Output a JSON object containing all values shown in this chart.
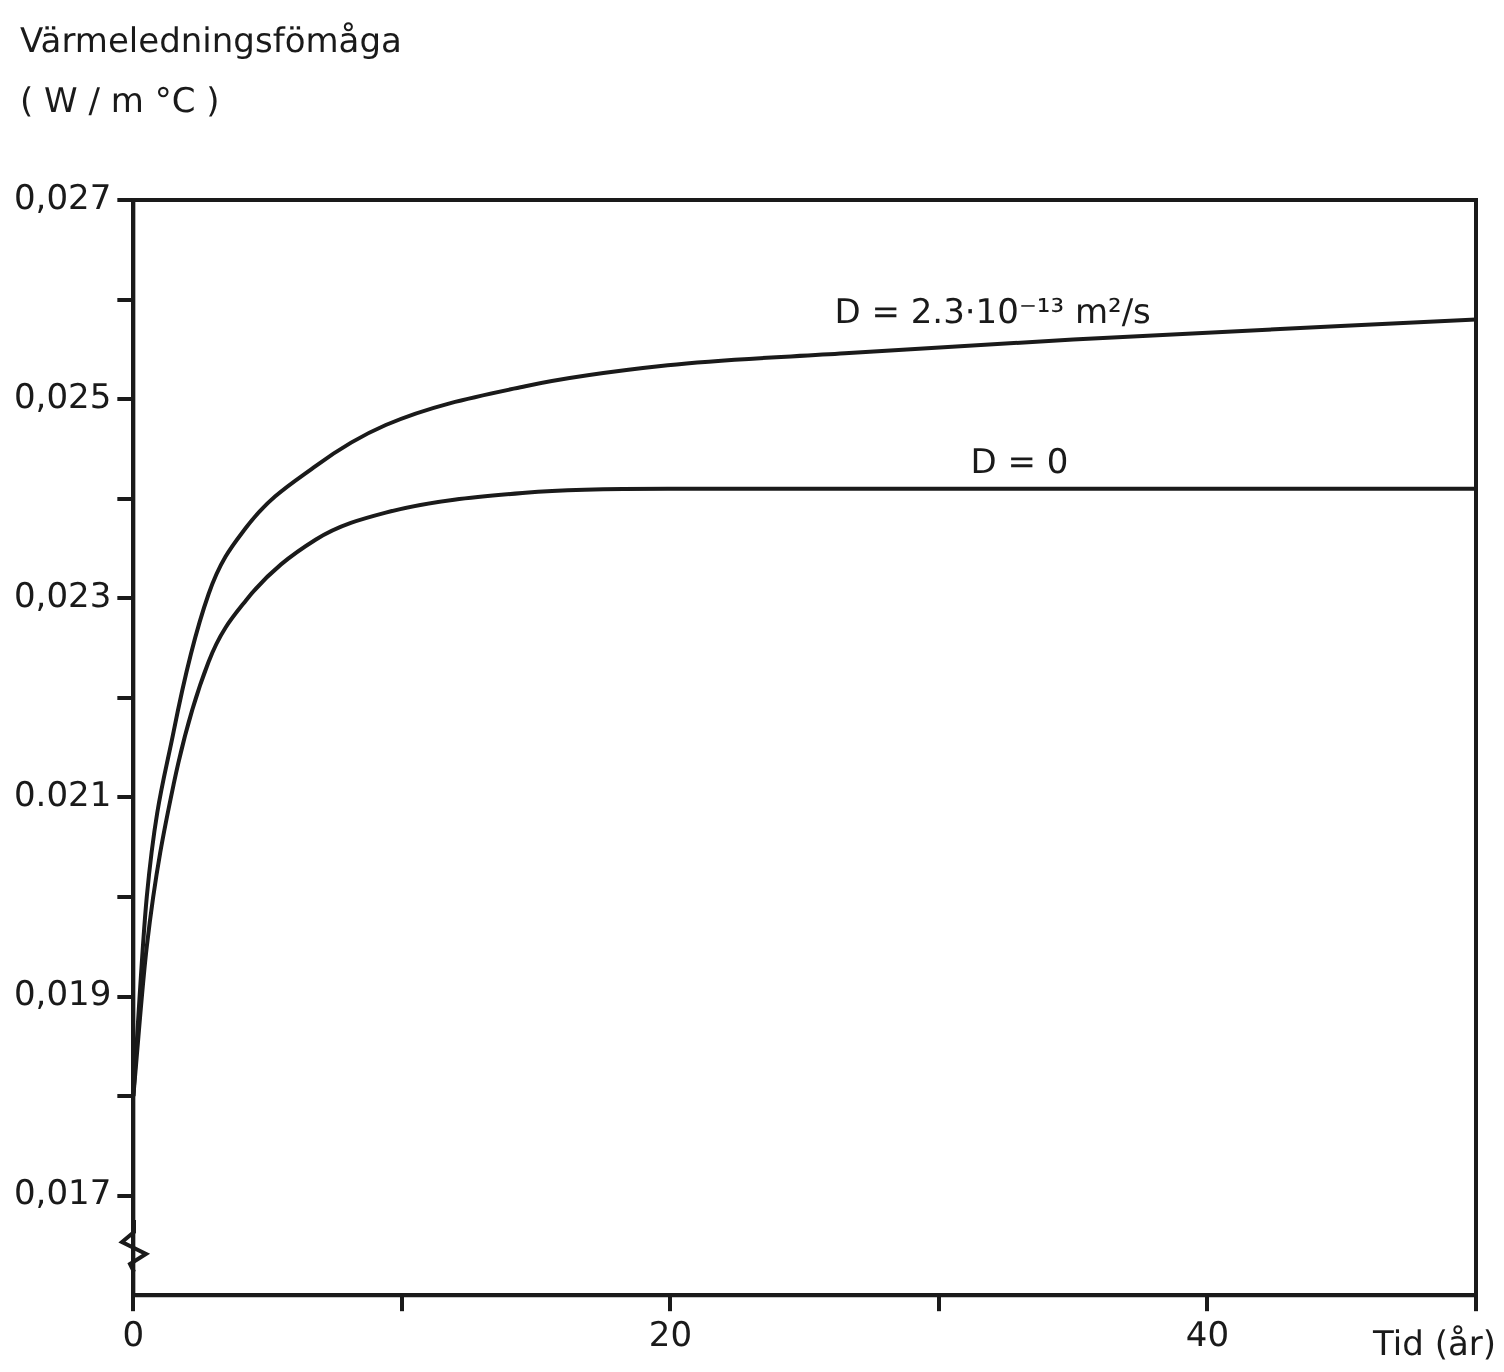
{
  "chart_data": {
    "type": "line",
    "ylabel": "Värmeledningsfömåga\n( W / m °C )",
    "xlabel": "Tid (år)",
    "xlim": [
      0,
      50
    ],
    "xticks": [
      0,
      {
        "value": 10,
        "label": null
      },
      20,
      {
        "value": 30,
        "label": null
      },
      40,
      {
        "value": 50,
        "label": null
      }
    ],
    "ylim": [
      0.016,
      0.027
    ],
    "yticks": [
      {
        "value": 0.017,
        "label": "0,017"
      },
      {
        "value": 0.018,
        "label": null
      },
      {
        "value": 0.019,
        "label": "0,019"
      },
      {
        "value": 0.02,
        "label": null
      },
      {
        "value": 0.021,
        "label": "0.021"
      },
      {
        "value": 0.022,
        "label": null
      },
      {
        "value": 0.023,
        "label": "0,023"
      },
      {
        "value": 0.024,
        "label": null
      },
      {
        "value": 0.025,
        "label": "0,025"
      },
      {
        "value": 0.026,
        "label": null
      },
      {
        "value": 0.027,
        "label": "0,027"
      }
    ],
    "grid": false,
    "legend": false,
    "marker": "none",
    "line_style": "solid",
    "series": [
      {
        "color": "#1a1a1a",
        "x": [
          0,
          0.5,
          1.5,
          2.8,
          4.2,
          6.8,
          9.4,
          14.6,
          19.9,
          26.5,
          35,
          50
        ],
        "values": [
          0.018,
          0.02,
          0.02166,
          0.02304,
          0.02371,
          0.02433,
          0.02474,
          0.02513,
          0.02534,
          0.02546,
          0.0256,
          0.0258
        ]
      },
      {
        "color": "#1a1a1a",
        "x": [
          0,
          0.5,
          1.5,
          2.8,
          4.2,
          6.8,
          9.4,
          14.6,
          19.9,
          30,
          50
        ],
        "values": [
          0.018,
          0.0195,
          0.02113,
          0.02236,
          0.02298,
          0.02359,
          0.02386,
          0.02406,
          0.0241,
          0.0241,
          0.0241
        ]
      }
    ],
    "annotations": [
      {
        "text": "D = 2.3·10⁻¹³ m²/s",
        "x": 32,
        "y": 0.0256
      },
      {
        "text": "D = 0",
        "x": 33,
        "y": 0.0241
      }
    ]
  }
}
